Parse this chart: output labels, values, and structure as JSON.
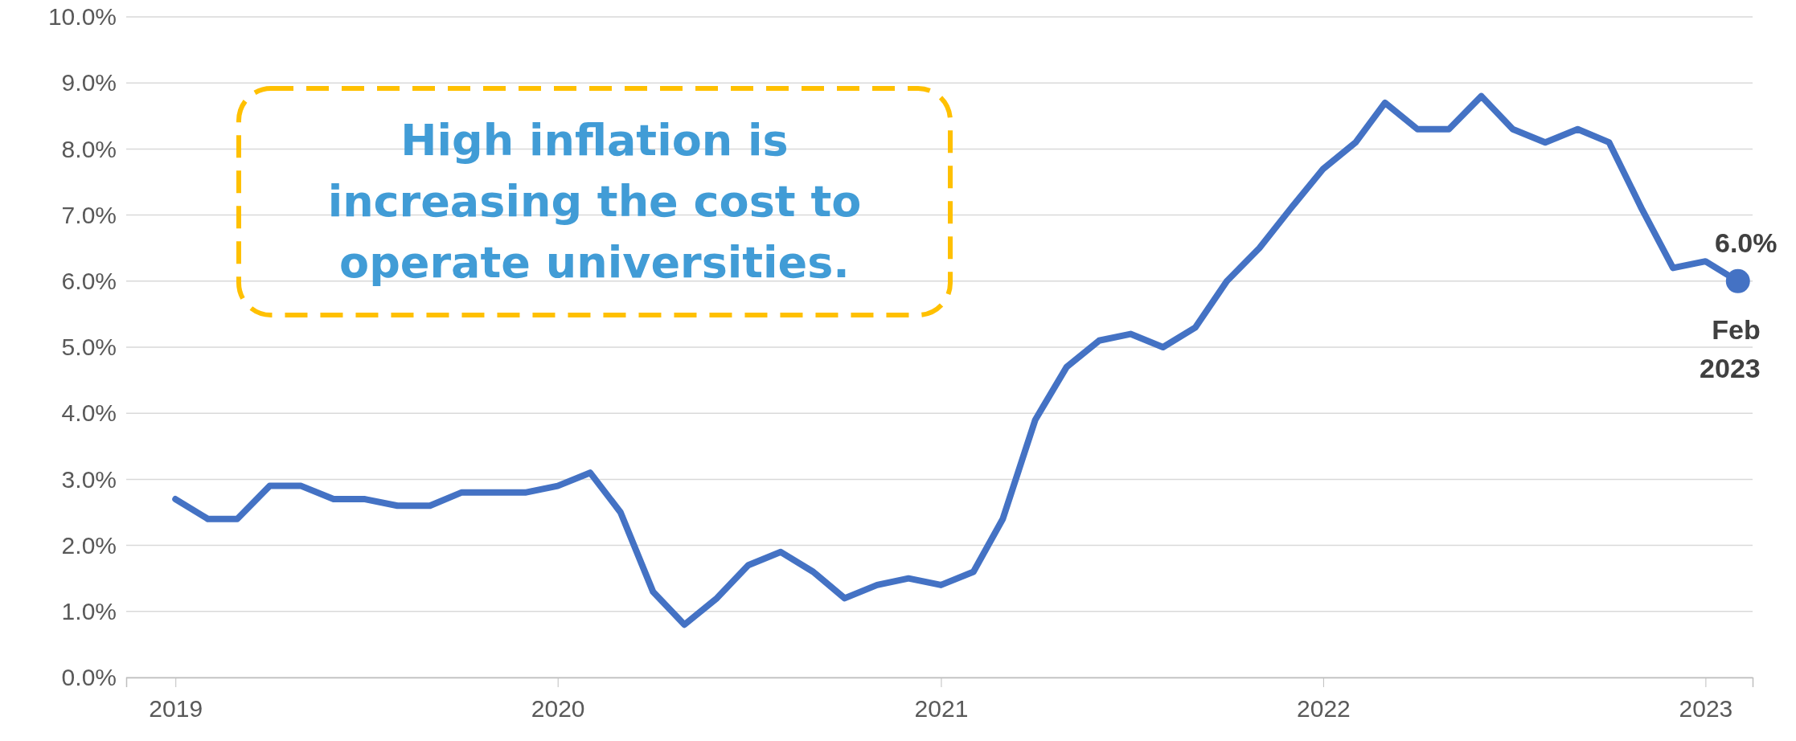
{
  "chart_data": {
    "type": "line",
    "x": [
      "2019-01",
      "2019-02",
      "2019-03",
      "2019-04",
      "2019-05",
      "2019-06",
      "2019-07",
      "2019-08",
      "2019-09",
      "2019-10",
      "2019-11",
      "2019-12",
      "2020-01",
      "2020-02",
      "2020-03",
      "2020-04",
      "2020-05",
      "2020-06",
      "2020-07",
      "2020-08",
      "2020-09",
      "2020-10",
      "2020-11",
      "2020-12",
      "2021-01",
      "2021-02",
      "2021-03",
      "2021-04",
      "2021-05",
      "2021-06",
      "2021-07",
      "2021-08",
      "2021-09",
      "2021-10",
      "2021-11",
      "2021-12",
      "2022-01",
      "2022-02",
      "2022-03",
      "2022-04",
      "2022-05",
      "2022-06",
      "2022-07",
      "2022-08",
      "2022-09",
      "2022-10",
      "2022-11",
      "2022-12",
      "2023-01",
      "2023-02"
    ],
    "series": [
      {
        "color": "#4472c4",
        "values": [
          2.7,
          2.4,
          2.4,
          2.9,
          2.9,
          2.7,
          2.7,
          2.6,
          2.6,
          2.8,
          2.8,
          2.8,
          2.9,
          3.1,
          2.5,
          1.3,
          0.8,
          1.2,
          1.7,
          1.9,
          1.6,
          1.2,
          1.4,
          1.5,
          1.4,
          1.6,
          2.4,
          3.9,
          4.7,
          5.1,
          5.2,
          5.0,
          5.3,
          6.0,
          6.5,
          7.1,
          7.7,
          8.1,
          8.7,
          8.3,
          8.3,
          8.8,
          8.3,
          8.1,
          8.3,
          8.1,
          7.1,
          6.2,
          6.3,
          6.0
        ]
      }
    ],
    "xlim": [
      "2018-11-15",
      "2023-02-15"
    ],
    "xticks": [
      {
        "value": "2019-01",
        "label": "2019"
      },
      {
        "value": "2020-01",
        "label": "2020"
      },
      {
        "value": "2021-01",
        "label": "2021"
      },
      {
        "value": "2022-01",
        "label": "2022"
      },
      {
        "value": "2023-01",
        "label": "2023"
      }
    ],
    "ylim": [
      0,
      10
    ],
    "yticks": [
      {
        "value": 0,
        "label": "0.0%"
      },
      {
        "value": 1,
        "label": "1.0%"
      },
      {
        "value": 2,
        "label": "2.0%"
      },
      {
        "value": 3,
        "label": "3.0%"
      },
      {
        "value": 4,
        "label": "4.0%"
      },
      {
        "value": 5,
        "label": "5.0%"
      },
      {
        "value": 6,
        "label": "6.0%"
      },
      {
        "value": 7,
        "label": "7.0%"
      },
      {
        "value": 8,
        "label": "8.0%"
      },
      {
        "value": 9,
        "label": "9.0%"
      },
      {
        "value": 10,
        "label": "10.0%"
      }
    ],
    "grid": "y",
    "marker": "none",
    "line_style": "solid",
    "annotations": [
      "High inflation is increasing the cost to operate universities.",
      {
        "text": "6.0%",
        "x": "2023-02",
        "y": 6.0
      },
      {
        "text": "Feb 2023",
        "x": "2023-02",
        "y": 6.0
      }
    ]
  }
}
